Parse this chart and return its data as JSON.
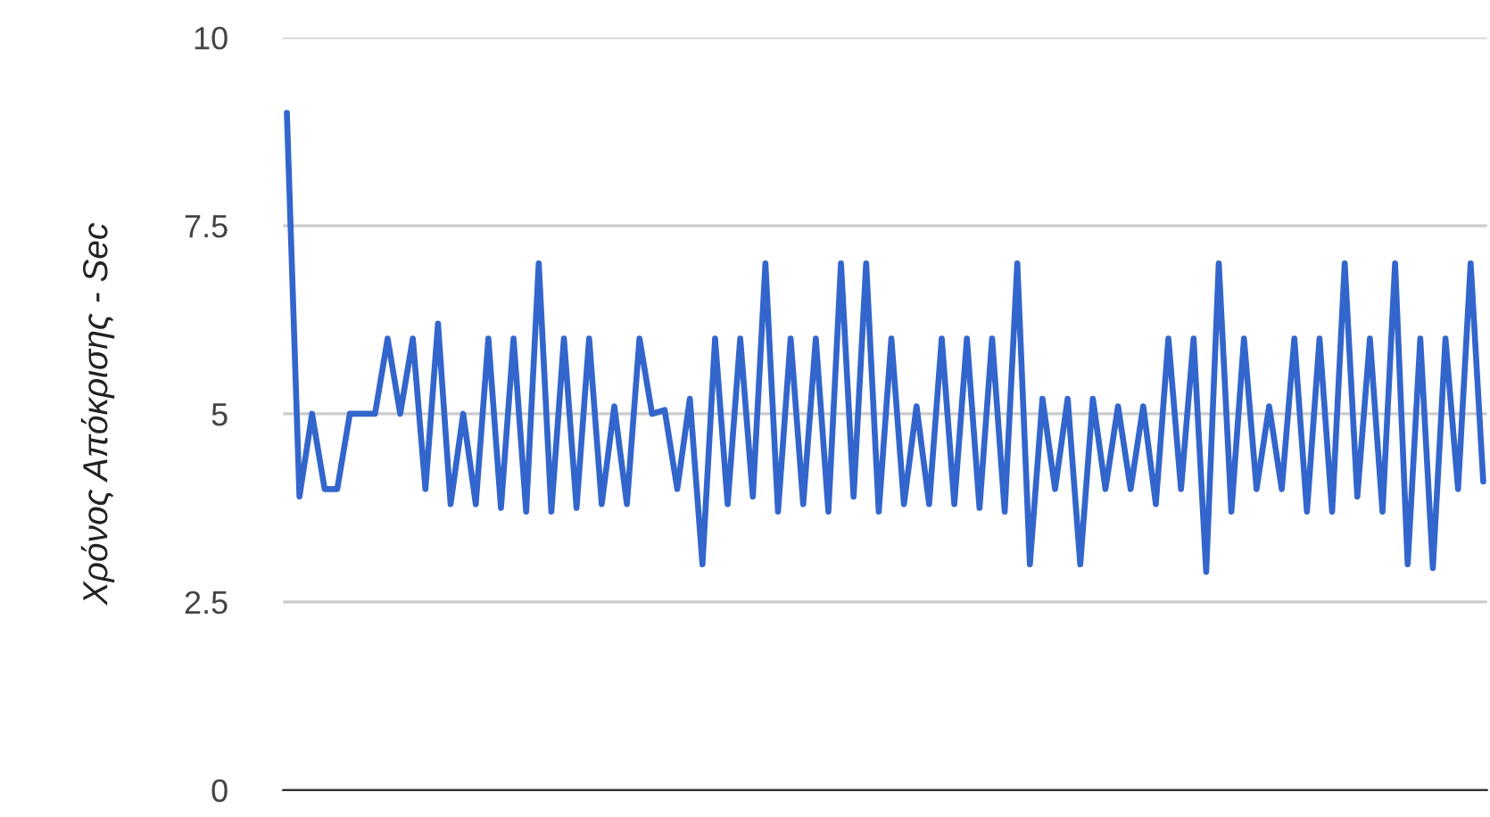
{
  "chart_data": {
    "type": "line",
    "ylabel": "Χρόνος Απόκρισης - Sec",
    "categories": [
      null,
      null,
      null,
      null,
      null,
      null,
      null,
      null,
      null,
      null,
      null,
      null,
      null,
      null,
      null,
      null,
      null,
      null,
      null,
      null,
      null,
      null,
      null,
      null,
      null,
      null,
      null,
      null,
      null,
      null,
      null,
      null,
      null,
      null,
      null,
      null,
      null,
      null,
      null,
      null,
      null,
      null,
      null,
      null,
      null,
      null,
      null,
      null,
      null,
      null,
      null,
      null,
      null,
      null,
      null,
      null,
      null,
      null,
      null,
      null,
      null,
      null,
      null,
      null,
      null,
      null,
      null,
      null,
      null,
      null,
      null,
      null,
      null,
      null,
      null,
      null,
      null,
      null,
      null,
      null,
      null,
      null,
      null,
      null,
      null,
      null,
      null,
      null,
      null,
      null,
      null,
      null,
      null,
      null,
      null,
      null
    ],
    "series": [
      {
        "color": "#3366cc",
        "values": [
          9,
          3.9,
          5,
          4,
          4,
          5,
          5,
          5,
          6,
          5,
          6,
          4,
          6.2,
          3.8,
          5,
          3.8,
          6,
          3.75,
          6,
          3.7,
          7,
          3.7,
          6,
          3.75,
          6,
          3.8,
          5.1,
          3.8,
          6,
          5,
          5.05,
          4,
          5.2,
          3,
          6,
          3.8,
          6,
          3.9,
          7,
          3.7,
          6,
          3.8,
          6,
          3.7,
          7,
          3.9,
          7,
          3.7,
          6,
          3.8,
          5.1,
          3.8,
          6,
          3.8,
          6,
          3.75,
          6,
          3.7,
          7,
          3,
          5.2,
          4,
          5.2,
          3,
          5.2,
          4,
          5.1,
          4,
          5.1,
          3.8,
          6,
          4,
          6,
          2.9,
          7,
          3.7,
          6,
          4,
          5.1,
          4,
          6,
          3.7,
          6,
          3.7,
          7,
          3.9,
          6,
          3.7,
          7,
          3,
          6,
          2.95,
          6,
          4,
          7,
          4.1
        ]
      }
    ],
    "ylim": [
      0,
      10
    ],
    "yticks": [
      0,
      2.5,
      5,
      7.5,
      10
    ],
    "grid": "y",
    "legend": false,
    "tick_labels": "y",
    "line_style": "solid",
    "marker": "none"
  }
}
